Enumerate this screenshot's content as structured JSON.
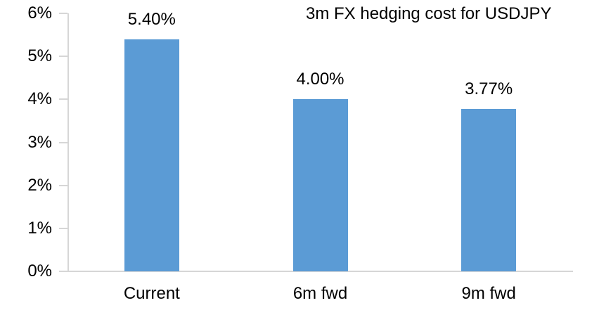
{
  "chart_data": {
    "type": "bar",
    "title": "3m FX hedging cost for USDJPY",
    "categories": [
      "Current",
      "6m fwd",
      "9m fwd"
    ],
    "values": [
      5.4,
      4.0,
      3.77
    ],
    "data_labels": [
      "5.40%",
      "4.00%",
      "3.77%"
    ],
    "xlabel": "",
    "ylabel": "",
    "ylim": [
      0,
      6
    ],
    "ytick_labels": [
      "0%",
      "1%",
      "2%",
      "3%",
      "4%",
      "5%",
      "6%"
    ],
    "grid": false,
    "legend": "none",
    "colors": {
      "bar": "#5B9BD5",
      "axis": "#D6D6D6",
      "text": "#000000",
      "background": "#FFFFFF"
    }
  }
}
